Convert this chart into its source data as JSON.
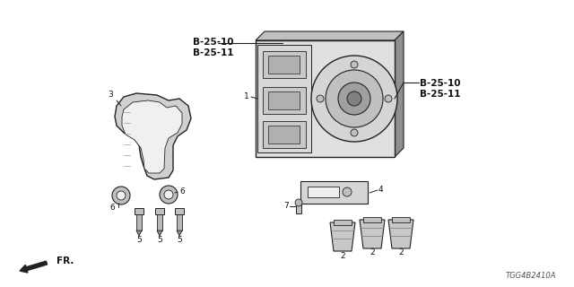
{
  "bg_color": "#ffffff",
  "diagram_id": "TGG4B2410A",
  "fr_label": "FR.",
  "labels": {
    "b2510_top": "B-25-10\nB-25-11",
    "b2510_right": "B-25-10\nB-25-11",
    "part1": "1",
    "part2": "2",
    "part3": "3",
    "part4": "4",
    "part5": "5",
    "part6": "6",
    "part7": "7"
  },
  "line_color": "#222222",
  "text_color": "#111111",
  "gray_light": "#e0e0e0",
  "gray_mid": "#c0c0c0",
  "gray_dark": "#909090"
}
